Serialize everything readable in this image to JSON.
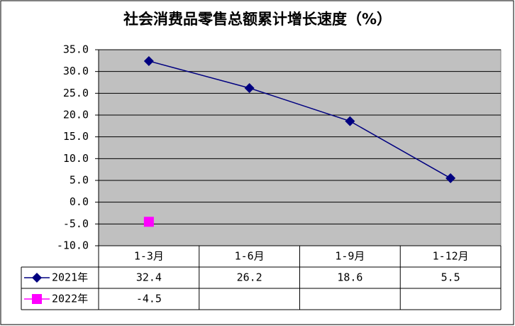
{
  "chart_data": {
    "type": "line",
    "title": "社会消费品零售总额累计增长速度（%）",
    "categories": [
      "1-3月",
      "1-6月",
      "1-9月",
      "1-12月"
    ],
    "series": [
      {
        "name": "2021年",
        "color": "#000080",
        "marker": "diamond",
        "values": [
          32.4,
          26.2,
          18.6,
          5.5
        ]
      },
      {
        "name": "2022年",
        "color": "#ff00ff",
        "marker": "square",
        "values": [
          -4.5,
          null,
          null,
          null
        ]
      }
    ],
    "ylim": [
      -10,
      35
    ],
    "yticks": [
      {
        "value": -10,
        "label": "-10.0"
      },
      {
        "value": -5,
        "label": "-5.0"
      },
      {
        "value": 0,
        "label": "0.0"
      },
      {
        "value": 5,
        "label": "5.0"
      },
      {
        "value": 10,
        "label": "10.0"
      },
      {
        "value": 15,
        "label": "15.0"
      },
      {
        "value": 20,
        "label": "20.0"
      },
      {
        "value": 25,
        "label": "25.0"
      },
      {
        "value": 30,
        "label": "30.0"
      },
      {
        "value": 35,
        "label": "35.0"
      }
    ],
    "grid": true,
    "plot_background": "#c0c0c0"
  }
}
